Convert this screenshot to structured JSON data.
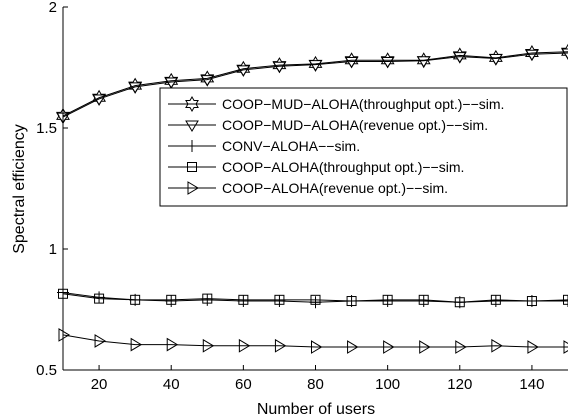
{
  "chart_data": {
    "type": "line",
    "xlabel": "Number of users",
    "ylabel": "Spectral efficiency",
    "xlim": [
      10,
      150
    ],
    "ylim": [
      0.5,
      2
    ],
    "xticks": [
      20,
      40,
      60,
      80,
      100,
      120,
      140
    ],
    "yticks": [
      0.5,
      1,
      1.5,
      2
    ],
    "ytick_labels": [
      "0.5",
      "1",
      "1.5",
      "2"
    ],
    "grid": false,
    "legend_position": "right",
    "x": [
      10,
      20,
      30,
      40,
      50,
      60,
      70,
      80,
      90,
      100,
      110,
      120,
      130,
      140,
      150
    ],
    "series": [
      {
        "name": "COOP−MUD−ALOHA(throughput opt.)−−sim.",
        "marker": "hexagram",
        "values": [
          1.55,
          1.625,
          1.675,
          1.695,
          1.705,
          1.745,
          1.76,
          1.765,
          1.78,
          1.78,
          1.78,
          1.8,
          1.79,
          1.81,
          1.815
        ]
      },
      {
        "name": "COOP−MUD−ALOHA(revenue opt.)−−sim.",
        "marker": "triangle-down",
        "values": [
          1.545,
          1.62,
          1.67,
          1.69,
          1.7,
          1.74,
          1.755,
          1.762,
          1.775,
          1.775,
          1.778,
          1.795,
          1.787,
          1.805,
          1.81
        ]
      },
      {
        "name": "CONV−ALOHA−−sim.",
        "marker": "plus",
        "values": [
          0.82,
          0.8,
          0.79,
          0.785,
          0.79,
          0.785,
          0.785,
          0.78,
          0.785,
          0.785,
          0.785,
          0.78,
          0.785,
          0.785,
          0.785
        ]
      },
      {
        "name": "COOP−ALOHA(throughput opt.)−−sim.",
        "marker": "square",
        "values": [
          0.815,
          0.795,
          0.79,
          0.79,
          0.795,
          0.79,
          0.79,
          0.79,
          0.785,
          0.79,
          0.79,
          0.78,
          0.79,
          0.785,
          0.79
        ]
      },
      {
        "name": "COOP−ALOHA(revenue opt.)−−sim.",
        "marker": "triangle-right",
        "values": [
          0.645,
          0.62,
          0.605,
          0.605,
          0.6,
          0.6,
          0.6,
          0.595,
          0.595,
          0.595,
          0.595,
          0.595,
          0.6,
          0.595,
          0.595
        ]
      }
    ]
  }
}
